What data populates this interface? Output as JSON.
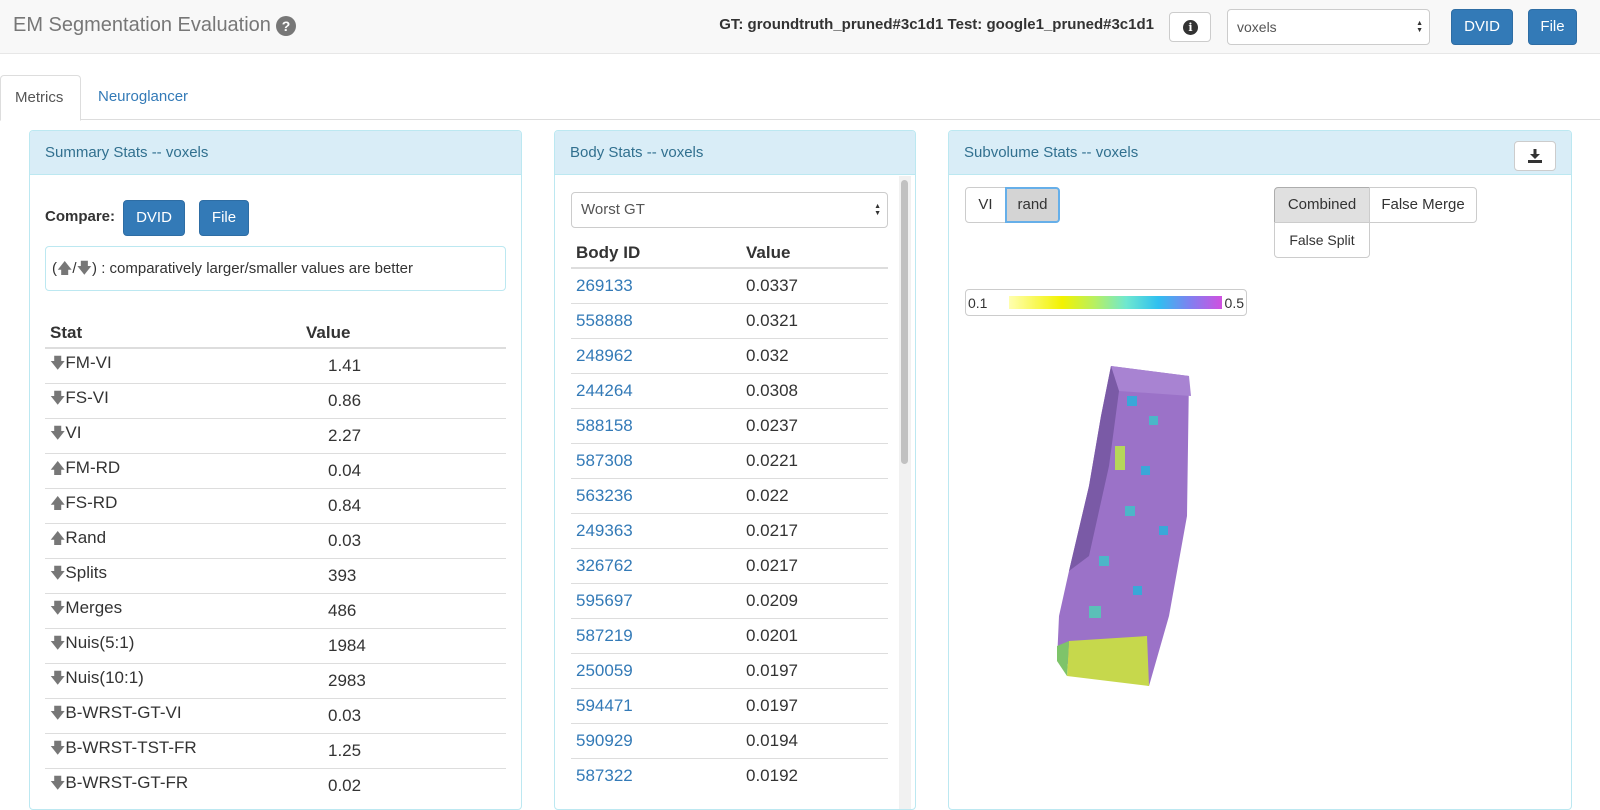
{
  "header": {
    "title": "EM Segmentation Evaluation",
    "gt_test_label": "GT: groundtruth_pruned#3c1d1 Test: google1_pruned#3c1d1",
    "metric_select": "voxels",
    "dvid_label": "DVID",
    "file_label": "File"
  },
  "tabs": [
    {
      "label": "Metrics",
      "active": true
    },
    {
      "label": "Neuroglancer",
      "active": false
    }
  ],
  "summary": {
    "heading": "Summary Stats -- voxels",
    "compare_label": "Compare:",
    "dvid_label": "DVID",
    "file_label": "File",
    "legend_text": ": comparatively larger/smaller values are better",
    "columns": [
      "Stat",
      "Value"
    ],
    "rows": [
      {
        "dir": "down",
        "stat": "FM-VI",
        "value": "1.41"
      },
      {
        "dir": "down",
        "stat": "FS-VI",
        "value": "0.86"
      },
      {
        "dir": "down",
        "stat": "VI",
        "value": "2.27"
      },
      {
        "dir": "up",
        "stat": "FM-RD",
        "value": "0.04"
      },
      {
        "dir": "up",
        "stat": "FS-RD",
        "value": "0.84"
      },
      {
        "dir": "up",
        "stat": "Rand",
        "value": "0.03"
      },
      {
        "dir": "down",
        "stat": "Splits",
        "value": "393"
      },
      {
        "dir": "down",
        "stat": "Merges",
        "value": "486"
      },
      {
        "dir": "down",
        "stat": "Nuis(5:1)",
        "value": "1984"
      },
      {
        "dir": "down",
        "stat": "Nuis(10:1)",
        "value": "2983"
      },
      {
        "dir": "down",
        "stat": "B-WRST-GT-VI",
        "value": "0.03"
      },
      {
        "dir": "down",
        "stat": "B-WRST-TST-FR",
        "value": "1.25"
      },
      {
        "dir": "down",
        "stat": "B-WRST-GT-FR",
        "value": "0.02"
      }
    ]
  },
  "body": {
    "heading": "Body Stats -- voxels",
    "select_value": "Worst GT",
    "columns": [
      "Body ID",
      "Value"
    ],
    "rows": [
      {
        "id": "269133",
        "value": "0.0337"
      },
      {
        "id": "558888",
        "value": "0.0321"
      },
      {
        "id": "248962",
        "value": "0.032"
      },
      {
        "id": "244264",
        "value": "0.0308"
      },
      {
        "id": "588158",
        "value": "0.0237"
      },
      {
        "id": "587308",
        "value": "0.0221"
      },
      {
        "id": "563236",
        "value": "0.022"
      },
      {
        "id": "249363",
        "value": "0.0217"
      },
      {
        "id": "326762",
        "value": "0.0217"
      },
      {
        "id": "595697",
        "value": "0.0209"
      },
      {
        "id": "587219",
        "value": "0.0201"
      },
      {
        "id": "250059",
        "value": "0.0197"
      },
      {
        "id": "594471",
        "value": "0.0197"
      },
      {
        "id": "590929",
        "value": "0.0194"
      },
      {
        "id": "587322",
        "value": "0.0192"
      }
    ]
  },
  "subvolume": {
    "heading": "Subvolume Stats -- voxels",
    "vi_label": "VI",
    "rand_label": "rand",
    "combined_label": "Combined",
    "false_merge_label": "False Merge",
    "false_split_label": "False Split",
    "colorbar_min": "0.1",
    "colorbar_max": "0.5"
  }
}
